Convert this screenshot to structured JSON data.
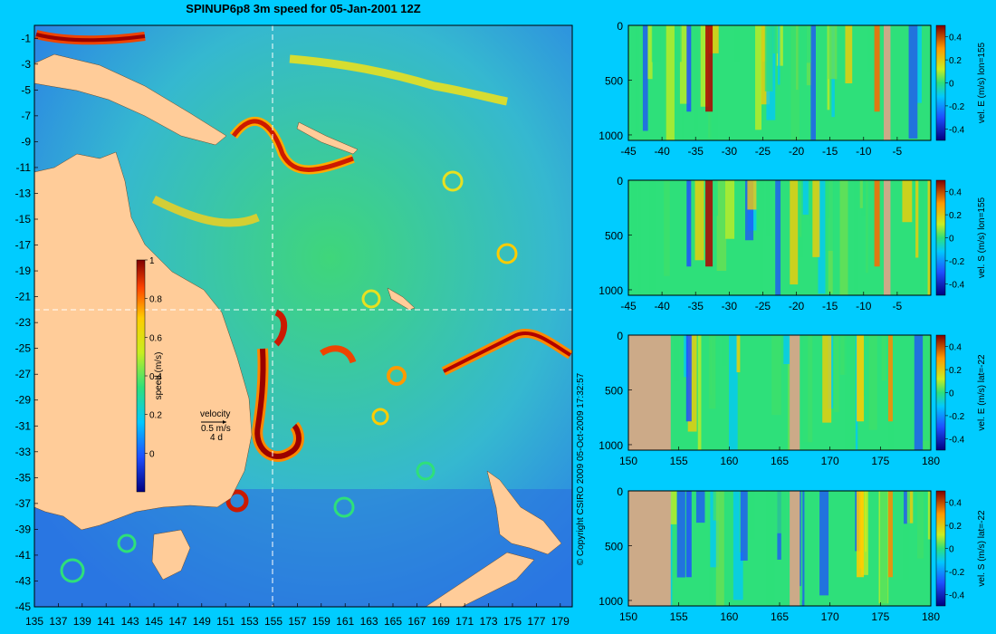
{
  "title": "SPINUP6p8 3m speed for 05-Jan-2001 12Z",
  "copyright": "© Copyright CSIRO 2009   05-Oct-2009 17:32:57",
  "colors": {
    "background": "#00ccff",
    "land": "#ffcc99",
    "land_section": "#ccaa88",
    "ocean_low": "#1e6fe0",
    "ocean_mid": "#2ee07a",
    "jet": "#cc1a00"
  },
  "map": {
    "lon_ticks": [
      "135",
      "137",
      "139",
      "141",
      "143",
      "145",
      "147",
      "149",
      "151",
      "153",
      "155",
      "157",
      "159",
      "161",
      "163",
      "165",
      "167",
      "169",
      "171",
      "173",
      "175",
      "177",
      "179"
    ],
    "lat_ticks": [
      "-1",
      "-3",
      "-5",
      "-7",
      "-9",
      "-11",
      "-13",
      "-15",
      "-17",
      "-19",
      "-21",
      "-23",
      "-25",
      "-27",
      "-29",
      "-31",
      "-33",
      "-35",
      "-37",
      "-39",
      "-41",
      "-43",
      "-45"
    ],
    "colorbar": {
      "label": "speed (m/s)",
      "ticks": [
        "1",
        "0.8",
        "0.6",
        "0.4",
        "0.2",
        "0"
      ]
    },
    "velocity_key": {
      "label": "velocity",
      "speed": "0.5 m/s",
      "days": "4 d"
    },
    "crosshair": {
      "lon": 155,
      "lat": -22
    }
  },
  "sections": [
    {
      "label": "vel. E (m/s) lon=155",
      "x_ticks": [
        "-45",
        "-40",
        "-35",
        "-30",
        "-25",
        "-20",
        "-15",
        "-10",
        "-5"
      ],
      "y_ticks": [
        "0",
        "500",
        "1000"
      ],
      "cbar_ticks": [
        "0.4",
        "0.2",
        "0",
        "-0.2",
        "-0.4"
      ],
      "x_range": [
        -45,
        0
      ],
      "land_spans": [
        [
          -7,
          -6
        ]
      ]
    },
    {
      "label": "vel. S (m/s) lon=155",
      "x_ticks": [
        "-45",
        "-40",
        "-35",
        "-30",
        "-25",
        "-20",
        "-15",
        "-10",
        "-5"
      ],
      "y_ticks": [
        "0",
        "500",
        "1000"
      ],
      "cbar_ticks": [
        "0.4",
        "0.2",
        "0",
        "-0.2",
        "-0.4"
      ],
      "x_range": [
        -45,
        0
      ],
      "land_spans": [
        [
          -7,
          -6
        ]
      ]
    },
    {
      "label": "vel. E (m/s) lat=-22",
      "x_ticks": [
        "150",
        "155",
        "160",
        "165",
        "170",
        "175",
        "180"
      ],
      "y_ticks": [
        "0",
        "500",
        "1000"
      ],
      "cbar_ticks": [
        "0.4",
        "0.2",
        "0",
        "-0.2",
        "-0.4"
      ],
      "x_range": [
        150,
        180
      ],
      "land_spans": [
        [
          150,
          154.2
        ],
        [
          166,
          167
        ]
      ]
    },
    {
      "label": "vel. S (m/s) lat=-22",
      "x_ticks": [
        "150",
        "155",
        "160",
        "165",
        "170",
        "175",
        "180"
      ],
      "y_ticks": [
        "0",
        "500",
        "1000"
      ],
      "cbar_ticks": [
        "0.4",
        "0.2",
        "0",
        "-0.2",
        "-0.4"
      ],
      "x_range": [
        150,
        180
      ],
      "land_spans": [
        [
          150,
          154.2
        ],
        [
          166,
          167
        ]
      ]
    }
  ]
}
